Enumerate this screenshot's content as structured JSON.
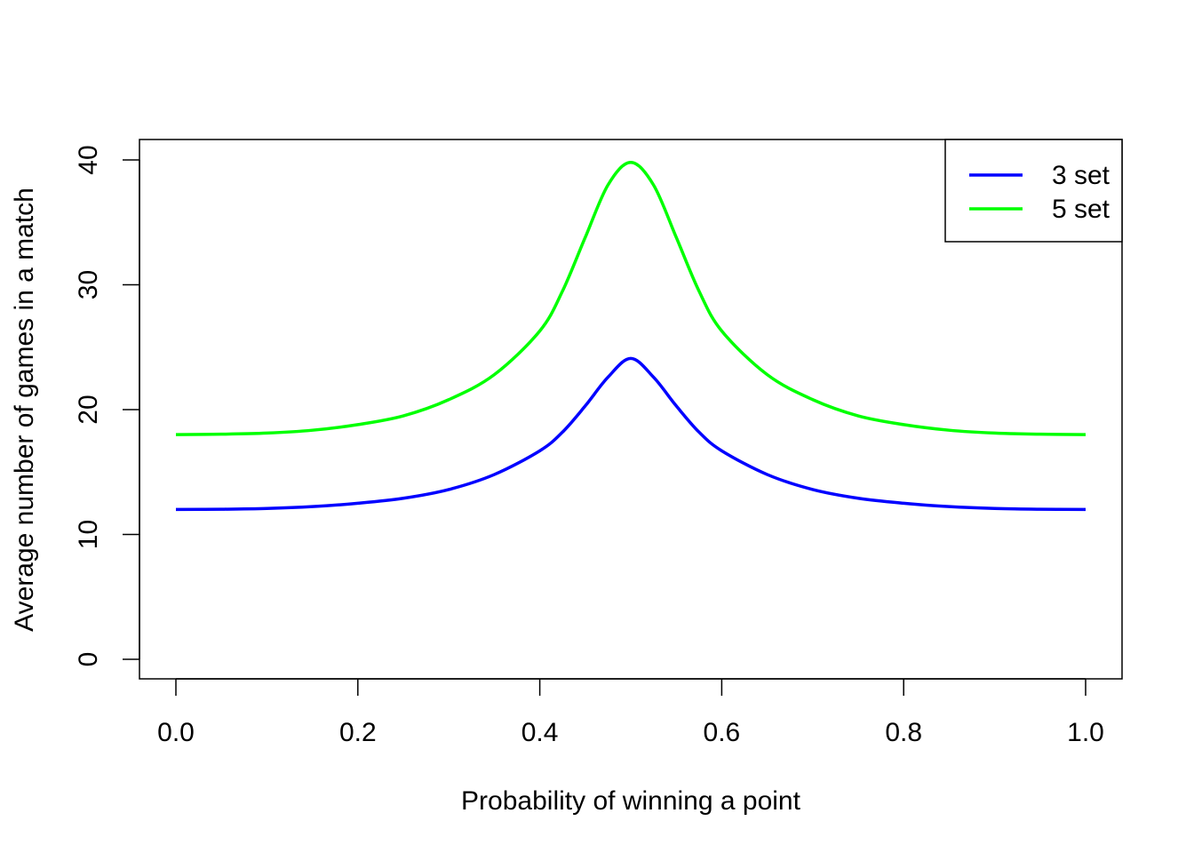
{
  "chart_data": {
    "type": "line",
    "title": "",
    "xlabel": "Probability of winning a point",
    "ylabel": "Average number of games in a match",
    "xlim": [
      0,
      1
    ],
    "ylim": [
      0,
      40
    ],
    "xticks": [
      0,
      0.2,
      0.4,
      0.6,
      0.8,
      1
    ],
    "xtick_labels": [
      "0.0",
      "0.2",
      "0.4",
      "0.6",
      "0.8",
      "1.0"
    ],
    "yticks": [
      0,
      10,
      20,
      30,
      40
    ],
    "ytick_labels": [
      "0",
      "10",
      "20",
      "30",
      "40"
    ],
    "grid": false,
    "legend": {
      "placement": "top-right"
    },
    "x": [
      0,
      0.05,
      0.1,
      0.15,
      0.2,
      0.25,
      0.3,
      0.35,
      0.4,
      0.425,
      0.45,
      0.475,
      0.5,
      0.525,
      0.55,
      0.575,
      0.6,
      0.65,
      0.7,
      0.75,
      0.8,
      0.85,
      0.9,
      0.95,
      1
    ],
    "series": [
      {
        "name": "3 set",
        "color": "#0000FF",
        "values": [
          12.0,
          12.02,
          12.08,
          12.23,
          12.5,
          12.9,
          13.6,
          14.8,
          16.7,
          18.2,
          20.3,
          22.6,
          24.1,
          22.6,
          20.3,
          18.2,
          16.7,
          14.8,
          13.6,
          12.9,
          12.5,
          12.23,
          12.08,
          12.02,
          12.0
        ]
      },
      {
        "name": "5 set",
        "color": "#00FF00",
        "values": [
          18.0,
          18.03,
          18.12,
          18.35,
          18.8,
          19.5,
          20.8,
          22.8,
          26.3,
          29.5,
          33.8,
          38.0,
          39.8,
          38.0,
          33.8,
          29.5,
          26.3,
          22.8,
          20.8,
          19.5,
          18.8,
          18.35,
          18.12,
          18.03,
          18.0
        ]
      }
    ]
  }
}
